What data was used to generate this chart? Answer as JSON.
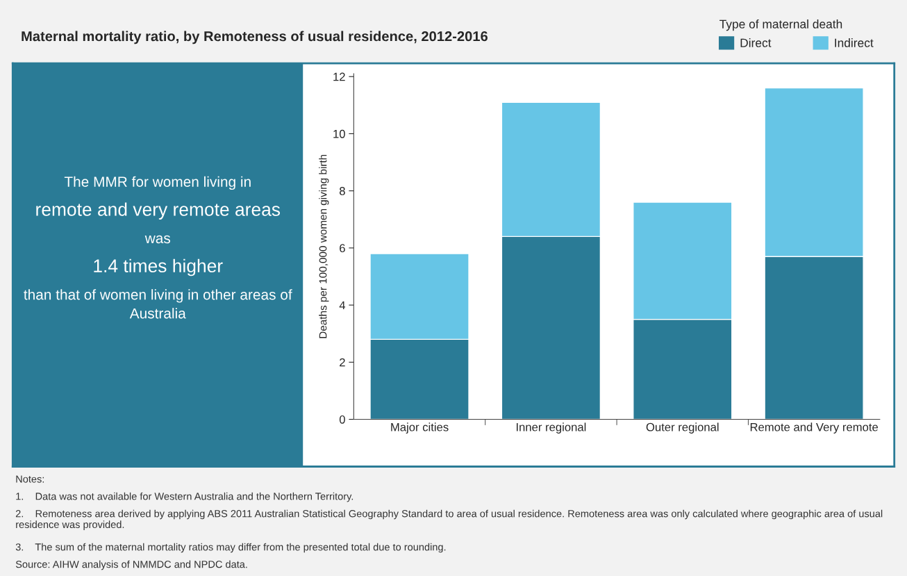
{
  "chart_data": [
    {
      "type": "other",
      "annotations": [
        "The MMR for women living in",
        "remote and very remote areas",
        "was",
        "1.4 times higher",
        "than that of women living in other areas of Australia"
      ]
    },
    {
      "type": "bar",
      "title": "Maternal mortality ratio, by Remoteness of usual residence, 2012-2016",
      "ylabel": "Deaths per 100,000 women giving birth",
      "legend_title": "Type of maternal death",
      "categories": [
        "Major cities",
        "Inner regional",
        "Outer regional",
        "Remote and Very remote"
      ],
      "stacked": true,
      "legend": "top right",
      "grid": false,
      "ylim": [
        0,
        12.1
      ],
      "yticks": [
        0,
        2,
        4,
        6,
        8,
        10,
        12
      ],
      "series": [
        {
          "name": "Direct",
          "color": "#2a7b96",
          "values": [
            2.8,
            6.4,
            3.5,
            5.7
          ]
        },
        {
          "name": "Indirect",
          "color": "#66c5e6",
          "values": [
            3.0,
            4.7,
            4.1,
            5.9
          ]
        }
      ],
      "annotations": [
        "Notes:",
        "1.    Data was not available for Western Australia and the Northern Territory.",
        "2.    Remoteness area derived by applying ABS 2011 Australian Statistical Geography Standard to area of usual residence. Remoteness area was only calculated where geographic area of usual residence was provided.",
        "3.    The sum of the maternal mortality ratios may differ from the presented total due to rounding.",
        "Source: AIHW analysis of NMMDC and NPDC data."
      ]
    }
  ]
}
